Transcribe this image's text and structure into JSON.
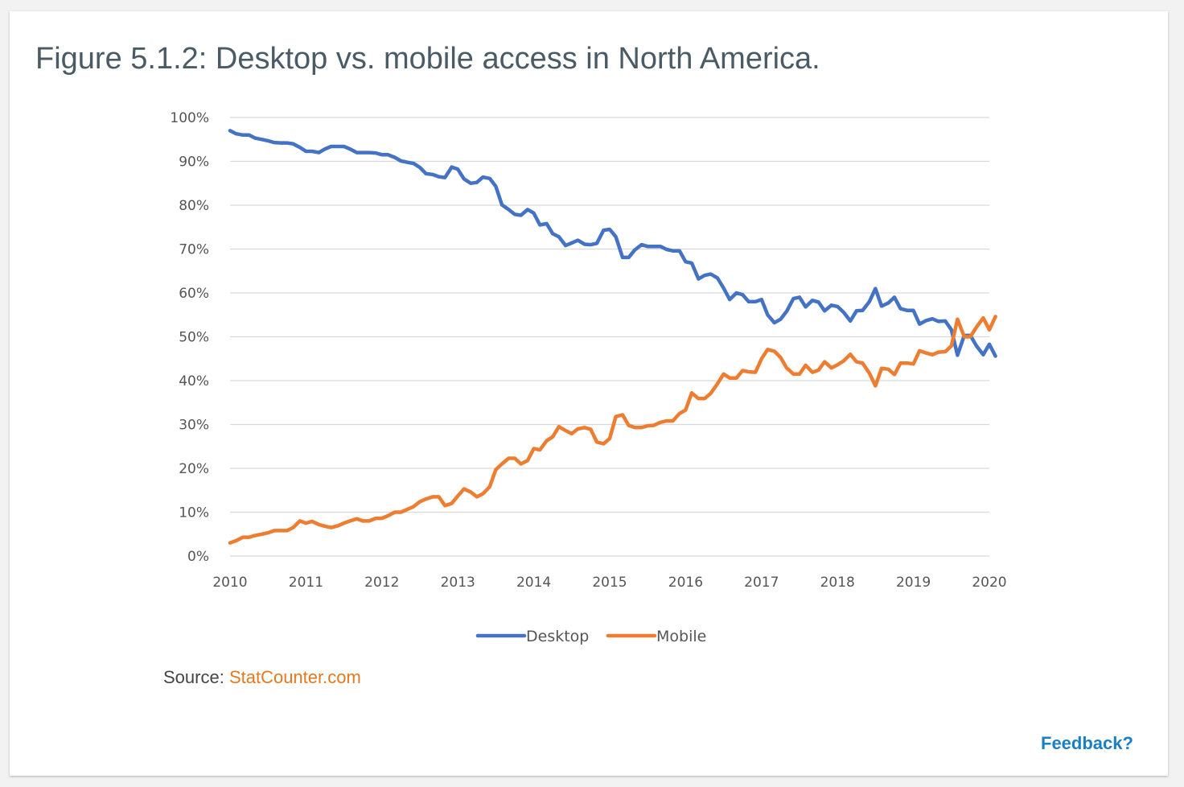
{
  "figure_title": "Figure 5.1.2: Desktop vs. mobile access in North America.",
  "source": {
    "prefix": "Source: ",
    "link_text": "StatCounter.com"
  },
  "feedback_label": "Feedback?",
  "colors": {
    "desktop": "#4472c4",
    "mobile": "#ed7d31",
    "link": "#e8781e",
    "feedback": "#1a7fc3",
    "grid": "#d9d9d9"
  },
  "chart_data": {
    "type": "line",
    "title": "",
    "xlabel": "",
    "ylabel": "",
    "xlim": [
      2010,
      2020
    ],
    "ylim": [
      0,
      100
    ],
    "x_ticks": [
      "2010",
      "2011",
      "2012",
      "2013",
      "2014",
      "2015",
      "2016",
      "2017",
      "2018",
      "2019",
      "2020"
    ],
    "y_ticks": [
      "0%",
      "10%",
      "20%",
      "30%",
      "40%",
      "50%",
      "60%",
      "70%",
      "80%",
      "90%",
      "100%"
    ],
    "grid": true,
    "legend": "bottom",
    "series": [
      {
        "name": "Desktop",
        "color": "#4472c4",
        "points": [
          [
            2010.0,
            97
          ],
          [
            2010.08,
            96.3
          ],
          [
            2010.17,
            96
          ],
          [
            2010.25,
            96
          ],
          [
            2010.33,
            95.3
          ],
          [
            2010.42,
            95
          ],
          [
            2010.5,
            94.7
          ],
          [
            2010.58,
            94.3
          ],
          [
            2010.67,
            94.2
          ],
          [
            2010.75,
            94.2
          ],
          [
            2010.83,
            94
          ],
          [
            2010.92,
            93.2
          ],
          [
            2011.0,
            92.3
          ],
          [
            2011.08,
            92.3
          ],
          [
            2011.17,
            92
          ],
          [
            2011.25,
            92.8
          ],
          [
            2011.33,
            93.4
          ],
          [
            2011.42,
            93.4
          ],
          [
            2011.5,
            93.4
          ],
          [
            2011.58,
            92.8
          ],
          [
            2011.67,
            92
          ],
          [
            2011.75,
            92
          ],
          [
            2011.83,
            92
          ],
          [
            2011.92,
            91.9
          ],
          [
            2012.0,
            91.5
          ],
          [
            2012.08,
            91.5
          ],
          [
            2012.17,
            90.9
          ],
          [
            2012.25,
            90.1
          ],
          [
            2012.33,
            89.8
          ],
          [
            2012.42,
            89.5
          ],
          [
            2012.5,
            88.6
          ],
          [
            2012.58,
            87.2
          ],
          [
            2012.67,
            87
          ],
          [
            2012.75,
            86.5
          ],
          [
            2012.83,
            86.3
          ],
          [
            2012.92,
            88.7
          ],
          [
            2013.0,
            88.2
          ],
          [
            2013.08,
            86
          ],
          [
            2013.17,
            85
          ],
          [
            2013.25,
            85.2
          ],
          [
            2013.33,
            86.4
          ],
          [
            2013.42,
            86.1
          ],
          [
            2013.5,
            84.3
          ],
          [
            2013.58,
            80.1
          ],
          [
            2013.67,
            79
          ],
          [
            2013.75,
            77.9
          ],
          [
            2013.83,
            77.7
          ],
          [
            2013.92,
            79
          ],
          [
            2014.0,
            78.2
          ],
          [
            2014.08,
            75.5
          ],
          [
            2014.17,
            75.8
          ],
          [
            2014.25,
            73.5
          ],
          [
            2014.33,
            72.8
          ],
          [
            2014.42,
            70.8
          ],
          [
            2014.5,
            71.4
          ],
          [
            2014.58,
            72
          ],
          [
            2014.67,
            71.1
          ],
          [
            2014.75,
            71
          ],
          [
            2014.83,
            71.3
          ],
          [
            2014.92,
            74.3
          ],
          [
            2015.0,
            74.5
          ],
          [
            2015.08,
            72.8
          ],
          [
            2015.17,
            68.1
          ],
          [
            2015.25,
            68.1
          ],
          [
            2015.33,
            69.8
          ],
          [
            2015.42,
            71
          ],
          [
            2015.5,
            70.6
          ],
          [
            2015.58,
            70.6
          ],
          [
            2015.67,
            70.6
          ],
          [
            2015.75,
            69.9
          ],
          [
            2015.83,
            69.6
          ],
          [
            2015.92,
            69.6
          ],
          [
            2016.0,
            67.1
          ],
          [
            2016.08,
            66.8
          ],
          [
            2016.17,
            63.2
          ],
          [
            2016.25,
            64
          ],
          [
            2016.33,
            64.3
          ],
          [
            2016.42,
            63.4
          ],
          [
            2016.5,
            61.1
          ],
          [
            2016.58,
            58.5
          ],
          [
            2016.67,
            60
          ],
          [
            2016.75,
            59.6
          ],
          [
            2016.83,
            58
          ],
          [
            2016.92,
            58
          ],
          [
            2017.0,
            58.5
          ],
          [
            2017.08,
            55
          ],
          [
            2017.17,
            53.2
          ],
          [
            2017.25,
            54
          ],
          [
            2017.33,
            55.8
          ],
          [
            2017.42,
            58.7
          ],
          [
            2017.5,
            59
          ],
          [
            2017.58,
            56.8
          ],
          [
            2017.67,
            58.3
          ],
          [
            2017.75,
            57.9
          ],
          [
            2017.83,
            55.9
          ],
          [
            2017.92,
            57.2
          ],
          [
            2018.0,
            56.9
          ],
          [
            2018.08,
            55.6
          ],
          [
            2018.17,
            53.6
          ],
          [
            2018.25,
            55.9
          ],
          [
            2018.33,
            56
          ],
          [
            2018.42,
            58
          ],
          [
            2018.5,
            61
          ],
          [
            2018.58,
            57
          ],
          [
            2018.67,
            57.7
          ],
          [
            2018.75,
            59
          ],
          [
            2018.83,
            56.4
          ],
          [
            2018.92,
            56
          ],
          [
            2019.0,
            56
          ],
          [
            2019.08,
            52.9
          ],
          [
            2019.17,
            53.7
          ],
          [
            2019.25,
            54.1
          ],
          [
            2019.33,
            53.5
          ],
          [
            2019.42,
            53.6
          ],
          [
            2019.5,
            51.6
          ],
          [
            2019.58,
            45.8
          ],
          [
            2019.67,
            50.3
          ],
          [
            2019.75,
            50.3
          ],
          [
            2019.83,
            47.9
          ],
          [
            2019.92,
            45.9
          ],
          [
            2020.0,
            48.3
          ],
          [
            2020.08,
            45.6
          ]
        ]
      },
      {
        "name": "Mobile",
        "color": "#ed7d31",
        "points": [
          [
            2010.0,
            3
          ],
          [
            2010.08,
            3.5
          ],
          [
            2010.17,
            4.3
          ],
          [
            2010.25,
            4.3
          ],
          [
            2010.33,
            4.7
          ],
          [
            2010.42,
            5
          ],
          [
            2010.5,
            5.3
          ],
          [
            2010.58,
            5.8
          ],
          [
            2010.67,
            5.8
          ],
          [
            2010.75,
            5.8
          ],
          [
            2010.83,
            6.5
          ],
          [
            2010.92,
            8
          ],
          [
            2011.0,
            7.5
          ],
          [
            2011.08,
            7.9
          ],
          [
            2011.17,
            7.2
          ],
          [
            2011.25,
            6.8
          ],
          [
            2011.33,
            6.5
          ],
          [
            2011.42,
            6.9
          ],
          [
            2011.5,
            7.5
          ],
          [
            2011.58,
            8
          ],
          [
            2011.67,
            8.5
          ],
          [
            2011.75,
            8
          ],
          [
            2011.83,
            8
          ],
          [
            2011.92,
            8.6
          ],
          [
            2012.0,
            8.6
          ],
          [
            2012.08,
            9.2
          ],
          [
            2012.17,
            10
          ],
          [
            2012.25,
            10
          ],
          [
            2012.33,
            10.6
          ],
          [
            2012.42,
            11.3
          ],
          [
            2012.5,
            12.4
          ],
          [
            2012.58,
            13
          ],
          [
            2012.67,
            13.5
          ],
          [
            2012.75,
            13.5
          ],
          [
            2012.83,
            11.5
          ],
          [
            2012.92,
            12
          ],
          [
            2013.0,
            13.7
          ],
          [
            2013.08,
            15.3
          ],
          [
            2013.17,
            14.6
          ],
          [
            2013.25,
            13.5
          ],
          [
            2013.33,
            14.2
          ],
          [
            2013.42,
            15.8
          ],
          [
            2013.5,
            19.7
          ],
          [
            2013.58,
            21
          ],
          [
            2013.67,
            22.3
          ],
          [
            2013.75,
            22.3
          ],
          [
            2013.83,
            21
          ],
          [
            2013.92,
            21.8
          ],
          [
            2014.0,
            24.5
          ],
          [
            2014.08,
            24.2
          ],
          [
            2014.17,
            26.3
          ],
          [
            2014.25,
            27.2
          ],
          [
            2014.33,
            29.5
          ],
          [
            2014.42,
            28.6
          ],
          [
            2014.5,
            27.9
          ],
          [
            2014.58,
            29
          ],
          [
            2014.67,
            29.3
          ],
          [
            2014.75,
            28.9
          ],
          [
            2014.83,
            26
          ],
          [
            2014.92,
            25.6
          ],
          [
            2015.0,
            26.8
          ],
          [
            2015.08,
            31.8
          ],
          [
            2015.17,
            32.2
          ],
          [
            2015.25,
            29.8
          ],
          [
            2015.33,
            29.3
          ],
          [
            2015.42,
            29.3
          ],
          [
            2015.5,
            29.7
          ],
          [
            2015.58,
            29.8
          ],
          [
            2015.67,
            30.5
          ],
          [
            2015.75,
            30.8
          ],
          [
            2015.83,
            30.8
          ],
          [
            2015.92,
            32.5
          ],
          [
            2016.0,
            33.3
          ],
          [
            2016.08,
            37.2
          ],
          [
            2016.17,
            35.9
          ],
          [
            2016.25,
            35.9
          ],
          [
            2016.33,
            37.1
          ],
          [
            2016.42,
            39.3
          ],
          [
            2016.5,
            41.5
          ],
          [
            2016.58,
            40.6
          ],
          [
            2016.67,
            40.6
          ],
          [
            2016.75,
            42.3
          ],
          [
            2016.83,
            42
          ],
          [
            2016.92,
            41.9
          ],
          [
            2017.0,
            45
          ],
          [
            2017.08,
            47.1
          ],
          [
            2017.17,
            46.7
          ],
          [
            2017.25,
            45.3
          ],
          [
            2017.33,
            42.9
          ],
          [
            2017.42,
            41.5
          ],
          [
            2017.5,
            41.5
          ],
          [
            2017.58,
            43.5
          ],
          [
            2017.67,
            41.9
          ],
          [
            2017.75,
            42.4
          ],
          [
            2017.83,
            44.3
          ],
          [
            2017.92,
            42.9
          ],
          [
            2018.0,
            43.6
          ],
          [
            2018.08,
            44.5
          ],
          [
            2018.17,
            46
          ],
          [
            2018.25,
            44.3
          ],
          [
            2018.33,
            44
          ],
          [
            2018.42,
            41.7
          ],
          [
            2018.5,
            38.8
          ],
          [
            2018.58,
            42.8
          ],
          [
            2018.67,
            42.6
          ],
          [
            2018.75,
            41.4
          ],
          [
            2018.83,
            44
          ],
          [
            2018.92,
            44
          ],
          [
            2019.0,
            43.8
          ],
          [
            2019.08,
            46.8
          ],
          [
            2019.17,
            46.3
          ],
          [
            2019.25,
            45.9
          ],
          [
            2019.33,
            46.5
          ],
          [
            2019.42,
            46.6
          ],
          [
            2019.5,
            47.9
          ],
          [
            2019.58,
            54
          ],
          [
            2019.67,
            50
          ],
          [
            2019.75,
            50
          ],
          [
            2019.83,
            52.2
          ],
          [
            2019.92,
            54.3
          ],
          [
            2020.0,
            51.6
          ],
          [
            2020.08,
            54.6
          ]
        ]
      }
    ]
  }
}
